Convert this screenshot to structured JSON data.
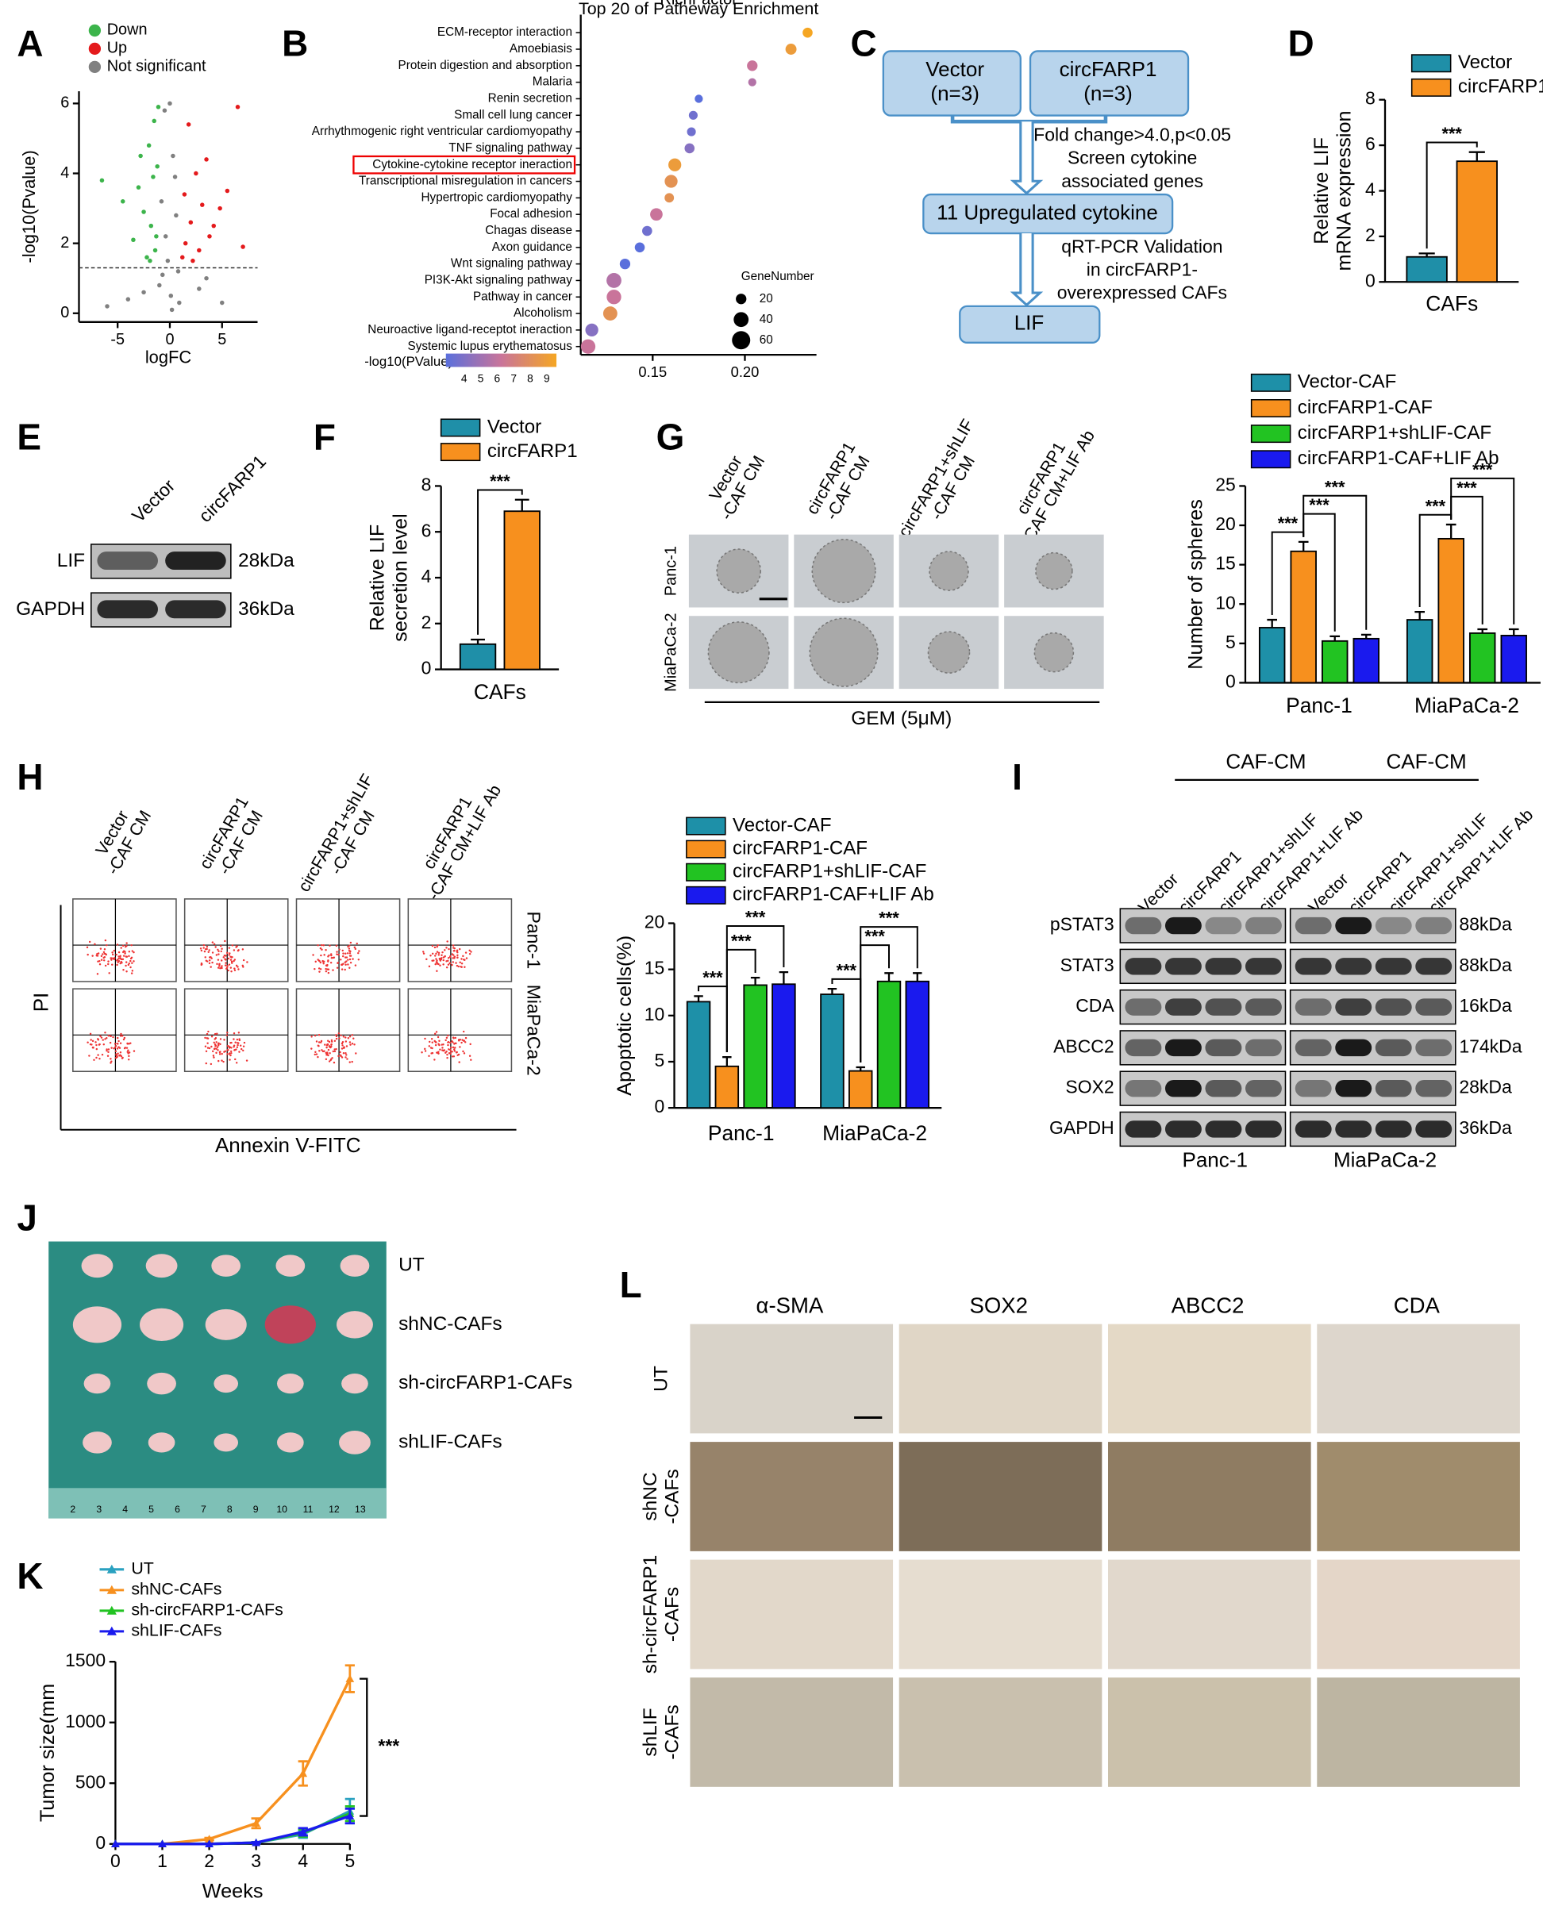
{
  "panel_labels": [
    "A",
    "B",
    "C",
    "D",
    "E",
    "F",
    "G",
    "H",
    "I",
    "J",
    "K",
    "L"
  ],
  "chart_data": [
    {
      "type": "scatter",
      "xlabel": "logFC",
      "ylabel": "-log10(Pvalue)",
      "xlim": [
        -8.7,
        8.4
      ],
      "ylim": [
        -0.25,
        6.35
      ],
      "xticks": [
        -5,
        0,
        5
      ],
      "yticks": [
        0,
        2,
        4,
        6
      ],
      "hline": 1.3,
      "series": [
        {
          "name": "Down",
          "color": "#3cb44b",
          "x": [
            -1.5,
            -2.0,
            -1.2,
            -3.0,
            -2.5,
            -1.8,
            -4.5,
            -1.4,
            -2.2,
            -1.1,
            -3.5,
            -1.6,
            -2.8,
            -1.3,
            -6.5,
            -1.9
          ],
          "values": [
            5.5,
            4.8,
            4.2,
            3.6,
            2.9,
            2.5,
            3.2,
            1.8,
            1.6,
            5.9,
            2.1,
            3.9,
            4.5,
            2.2,
            3.8,
            1.5
          ]
        },
        {
          "name": "Up",
          "color": "#e41a1c",
          "x": [
            1.5,
            2.0,
            3.1,
            4.2,
            2.5,
            1.2,
            5.5,
            3.8,
            1.8,
            2.8,
            4.8,
            6.5,
            1.4,
            3.5,
            2.2,
            7.0
          ],
          "values": [
            2.0,
            2.6,
            3.1,
            2.5,
            4.0,
            1.6,
            3.5,
            2.2,
            5.4,
            1.8,
            3.0,
            5.9,
            3.4,
            4.4,
            1.5,
            1.9
          ]
        },
        {
          "name": "Not significant",
          "color": "#808080",
          "x": [
            -0.5,
            0.3,
            -0.8,
            0.6,
            -0.2,
            0.1,
            -1.0,
            0.9,
            -2.5,
            2.8,
            -4.0,
            3.5,
            -0.4,
            0.5,
            0.0,
            -0.7,
            0.8,
            -6.0,
            5.0,
            0.2
          ],
          "values": [
            5.8,
            4.5,
            3.2,
            2.8,
            1.5,
            0.5,
            0.8,
            0.3,
            0.6,
            0.7,
            0.4,
            1.0,
            2.2,
            3.9,
            6.0,
            1.1,
            1.2,
            0.2,
            0.3,
            0.1
          ]
        }
      ]
    },
    {
      "type": "dot",
      "title": "Top 20 of Patheway Enrichment",
      "xlabel": "RichFactor",
      "xlim": [
        0.111,
        0.2388
      ],
      "xticks": [
        0.15,
        {
          "value": 0.2,
          "label": "0.20"
        }
      ],
      "highlight": 8,
      "categories": [
        "ECM-receptor interaction",
        "Amoebiasis",
        "Protein digestion and absorption",
        "Malaria",
        "Renin secretion",
        "Small cell lung cancer",
        "Arrhythmogenic right ventricular cardiomyopathy",
        "TNF signaling pathway",
        "Cytokine-cytokine receptor ineraction",
        "Transcriptional misregulation in cancers",
        "Hypertropic cardiomyopathy",
        "Focal adhesion",
        "Chagas disease",
        "Axon guidance",
        "Wnt signaling pathway",
        "PI3K-Akt signaling pathway",
        "Pathway in cancer",
        "Alcoholism",
        "Neuroactive ligand-receptot ineraction",
        "Systemic lupus erythematosus"
      ],
      "richfactor": [
        0.234,
        0.225,
        0.204,
        0.204,
        0.175,
        0.172,
        0.171,
        0.17,
        0.162,
        0.16,
        0.159,
        0.152,
        0.147,
        0.143,
        0.135,
        0.129,
        0.129,
        0.127,
        0.117,
        0.115
      ],
      "pvalue": [
        9,
        8.5,
        6.5,
        6,
        4,
        4.5,
        4.5,
        5,
        8.5,
        8,
        8,
        6.5,
        4.5,
        4,
        4,
        6,
        6.5,
        8,
        5,
        6.5
      ],
      "gene_number": [
        18,
        22,
        20,
        12,
        12,
        14,
        14,
        18,
        30,
        30,
        16,
        28,
        18,
        18,
        20,
        40,
        38,
        36,
        30,
        38
      ],
      "colorbar": {
        "label": "-log10(PValue)",
        "ticks": [
          4,
          5,
          6,
          7,
          8,
          9
        ],
        "colors": [
          "#5a6fdc",
          "#c9749a",
          "#f5a623"
        ]
      },
      "size_legend": {
        "title": "GeneNumber",
        "values": [
          20,
          40,
          60
        ]
      }
    },
    {
      "type": "bar",
      "ylabel": [
        "Relative LIF",
        "mRNA expression"
      ],
      "categories": [
        "CAFs"
      ],
      "ylim": [
        0,
        8
      ],
      "yticks": [
        0,
        2,
        4,
        6,
        8
      ],
      "series": [
        {
          "name": "Vector",
          "color": "#1f8fa8",
          "values": [
            1.1
          ],
          "errors": [
            0.15
          ]
        },
        {
          "name": "circFARP1",
          "color": "#f7901e",
          "values": [
            5.3
          ],
          "errors": [
            0.4
          ]
        }
      ],
      "significance": [
        {
          "groups": [
            0,
            1
          ],
          "label": "***"
        }
      ]
    },
    {
      "type": "bar",
      "ylabel": [
        "Relative LIF",
        "secretion level"
      ],
      "categories": [
        "CAFs"
      ],
      "ylim": [
        0,
        8
      ],
      "yticks": [
        0,
        2,
        4,
        6,
        8
      ],
      "series": [
        {
          "name": "Vector",
          "color": "#1f8fa8",
          "values": [
            1.1
          ],
          "errors": [
            0.2
          ]
        },
        {
          "name": "circFARP1",
          "color": "#f7901e",
          "values": [
            6.9
          ],
          "errors": [
            0.5
          ]
        }
      ],
      "significance": [
        {
          "groups": [
            0,
            1
          ],
          "label": "***"
        }
      ]
    },
    {
      "type": "bar",
      "ylabel": "Number of spheres",
      "categories": [
        "Panc-1",
        "MiaPaCa-2"
      ],
      "ylim": [
        0,
        25
      ],
      "yticks": [
        0,
        5,
        10,
        15,
        20,
        25
      ],
      "series": [
        {
          "name": "Vector-CAF",
          "color": "#1e90a8",
          "values": [
            7,
            8
          ],
          "errors": [
            1,
            1
          ]
        },
        {
          "name": "circFARP1-CAF",
          "color": "#f7901e",
          "values": [
            16.7,
            18.3
          ],
          "errors": [
            1.2,
            1.8
          ]
        },
        {
          "name": "circFARP1+shLIF-CAF",
          "color": "#22c322",
          "values": [
            5.3,
            6.3
          ],
          "errors": [
            0.6,
            0.5
          ]
        },
        {
          "name": "circFARP1-CAF+LIF Ab",
          "color": "#1a1aee",
          "values": [
            5.6,
            6
          ],
          "errors": [
            0.5,
            0.8
          ]
        }
      ],
      "significance": [
        {
          "groups": [
            0,
            1
          ],
          "label": "***"
        },
        {
          "groups": [
            1,
            2
          ],
          "label": "***"
        },
        {
          "groups": [
            1,
            3
          ],
          "label": "***"
        }
      ]
    },
    {
      "type": "bar",
      "ylabel": "Apoptotic cells(%)",
      "categories": [
        "Panc-1",
        "MiaPaCa-2"
      ],
      "ylim": [
        0,
        20
      ],
      "yticks": [
        0,
        5,
        10,
        15,
        20
      ],
      "series": [
        {
          "name": "Vector-CAF",
          "color": "#1e90a8",
          "values": [
            11.5,
            12.3
          ],
          "errors": [
            0.6,
            0.6
          ]
        },
        {
          "name": "circFARP1-CAF",
          "color": "#f7901e",
          "values": [
            4.5,
            4.0
          ],
          "errors": [
            1.0,
            0.4
          ]
        },
        {
          "name": "circFARP1+shLIF-CAF",
          "color": "#22c322",
          "values": [
            13.3,
            13.7
          ],
          "errors": [
            0.8,
            0.9
          ]
        },
        {
          "name": "circFARP1-CAF+LIF Ab",
          "color": "#1a1aee",
          "values": [
            13.4,
            13.7
          ],
          "errors": [
            1.3,
            0.9
          ]
        }
      ],
      "significance": [
        {
          "groups": [
            0,
            1
          ],
          "label": "***"
        },
        {
          "groups": [
            1,
            2
          ],
          "label": "***"
        },
        {
          "groups": [
            1,
            3
          ],
          "label": "***"
        }
      ]
    },
    {
      "type": "line",
      "xlabel": "Weeks",
      "ylabel": "Tumor size(mm",
      "x": [
        0,
        1,
        2,
        3,
        4,
        5
      ],
      "xlim": [
        0,
        5
      ],
      "xticks": [
        0,
        1,
        2,
        3,
        4,
        5
      ],
      "ylim": [
        0,
        1500
      ],
      "yticks": [
        0,
        500,
        1000,
        1500
      ],
      "annotation": "***",
      "series": [
        {
          "name": "UT",
          "color": "#2aa1c0",
          "values": [
            0,
            0,
            0,
            10,
            80,
            270
          ],
          "errors": [
            0,
            0,
            0,
            5,
            30,
            100
          ]
        },
        {
          "name": "shNC-CAFs",
          "color": "#f7901e",
          "values": [
            0,
            0,
            40,
            170,
            580,
            1360
          ],
          "errors": [
            0,
            0,
            10,
            40,
            100,
            110
          ]
        },
        {
          "name": "sh-circFARP1-CAFs",
          "color": "#22c322",
          "values": [
            0,
            0,
            0,
            10,
            90,
            250
          ],
          "errors": [
            0,
            0,
            0,
            5,
            30,
            60
          ]
        },
        {
          "name": "shLIF-CAFs",
          "color": "#1a1aee",
          "values": [
            0,
            0,
            0,
            10,
            100,
            230
          ],
          "errors": [
            0,
            0,
            0,
            5,
            30,
            60
          ]
        }
      ]
    }
  ],
  "flowchart": {
    "nodes": [
      [
        "Vector",
        "(n=3)"
      ],
      [
        "circFARP1",
        "(n=3)"
      ],
      [
        "11 Upregulated cytokine"
      ],
      [
        "LIF"
      ]
    ],
    "steps": [
      [
        "Fold change>4.0,p<0.05",
        "Screen cytokine",
        "associated genes"
      ],
      [
        "qRT-PCR Validation",
        "in circFARP1-",
        "overexpressed CAFs"
      ]
    ]
  },
  "western_blot_E": {
    "lanes": [
      "Vector",
      "circFARP1"
    ],
    "rows": [
      {
        "protein": "LIF",
        "size": "28kDa"
      },
      {
        "protein": "GAPDH",
        "size": "36kDa"
      }
    ]
  },
  "sphere_images": {
    "columns": [
      [
        "Vector",
        "-CAF CM"
      ],
      [
        "circFARP1",
        "-CAF CM"
      ],
      [
        "circFARP1+shLIF",
        "-CAF CM"
      ],
      [
        "circFARP1",
        "-CAF CM+LIF Ab"
      ]
    ],
    "rows": [
      "Panc-1",
      "MiaPaCa-2"
    ],
    "treatment": "GEM (5μM)"
  },
  "flow_cytometry": {
    "columns": [
      [
        "Vector",
        "-CAF CM"
      ],
      [
        "circFARP1",
        "-CAF CM"
      ],
      [
        "circFARP1+shLIF",
        "-CAF CM"
      ],
      [
        "circFARP1",
        "-CAF CM+LIF Ab"
      ]
    ],
    "rows": [
      "Panc-1",
      "MiaPaCa-2"
    ],
    "ylabel": "PI",
    "xlabel": "Annexin V-FITC"
  },
  "western_blot_I": {
    "groups": [
      {
        "header": "CAF-CM",
        "cell_line": "Panc-1"
      },
      {
        "header": "CAF-CM",
        "cell_line": "MiaPaCa-2"
      }
    ],
    "lanes": [
      "Vector",
      "circFARP1",
      "circFARP1+shLIF",
      "circFARP1+LIF Ab"
    ],
    "rows": [
      {
        "protein": "pSTAT3",
        "size": "88kDa"
      },
      {
        "protein": "STAT3",
        "size": "88kDa"
      },
      {
        "protein": "CDA",
        "size": "16kDa"
      },
      {
        "protein": "ABCC2",
        "size": "174kDa"
      },
      {
        "protein": "SOX2",
        "size": "28kDa"
      },
      {
        "protein": "GAPDH",
        "size": "36kDa"
      }
    ]
  },
  "tumor_photo": {
    "rows": [
      "UT",
      "shNC-CAFs",
      "sh-circFARP1-CAFs",
      "shLIF-CAFs"
    ],
    "ruler": [
      "2",
      "3",
      "4",
      "5",
      "6",
      "7",
      "8",
      "9",
      "10",
      "11",
      "12",
      "13"
    ]
  },
  "ihc": {
    "columns": [
      "α-SMA",
      "SOX2",
      "ABCC2",
      "CDA"
    ],
    "rows": [
      [
        "UT"
      ],
      [
        "shNC",
        "-CAFs"
      ],
      [
        "sh-circFARP1",
        "-CAFs"
      ],
      [
        "shLIF",
        "-CAFs"
      ]
    ]
  }
}
